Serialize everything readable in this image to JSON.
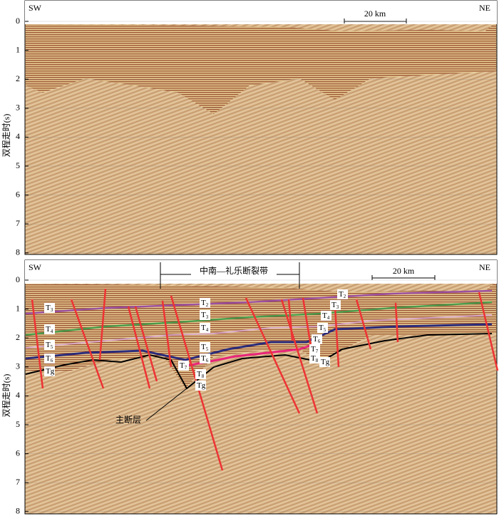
{
  "panels": [
    {
      "left_label": "SW",
      "right_label": "NE",
      "scale_label": "20 km",
      "y_axis_label": "双程走时(s)",
      "y_ticks": [
        "0",
        "1",
        "2",
        "3",
        "4",
        "5",
        "6",
        "7",
        "8"
      ]
    },
    {
      "left_label": "SW",
      "right_label": "NE",
      "scale_label": "20 km",
      "y_axis_label": "双程走时(s)",
      "y_ticks": [
        "0",
        "1",
        "2",
        "3",
        "4",
        "5",
        "6",
        "7",
        "8"
      ],
      "zone_label": "中南—礼乐断裂带",
      "fault_label": "主断层",
      "horizon_labels": [
        {
          "main": "T",
          "sub": "3"
        },
        {
          "main": "T",
          "sub": "4"
        },
        {
          "main": "T",
          "sub": "5"
        },
        {
          "main": "T",
          "sub": "6"
        },
        {
          "main": "Tg",
          "sub": ""
        },
        {
          "main": "T",
          "sub": "2"
        },
        {
          "main": "T",
          "sub": "3"
        },
        {
          "main": "T",
          "sub": "4"
        },
        {
          "main": "T",
          "sub": "5"
        },
        {
          "main": "T",
          "sub": "6"
        },
        {
          "main": "T",
          "sub": "7"
        },
        {
          "main": "T",
          "sub": "8"
        },
        {
          "main": "Tg",
          "sub": ""
        },
        {
          "main": "T",
          "sub": "2"
        },
        {
          "main": "T",
          "sub": "3"
        },
        {
          "main": "T",
          "sub": "4"
        },
        {
          "main": "T",
          "sub": "5"
        },
        {
          "main": "T",
          "sub": "6"
        },
        {
          "main": "T",
          "sub": "7"
        },
        {
          "main": "T",
          "sub": "8"
        },
        {
          "main": "Tg",
          "sub": ""
        }
      ]
    }
  ]
}
